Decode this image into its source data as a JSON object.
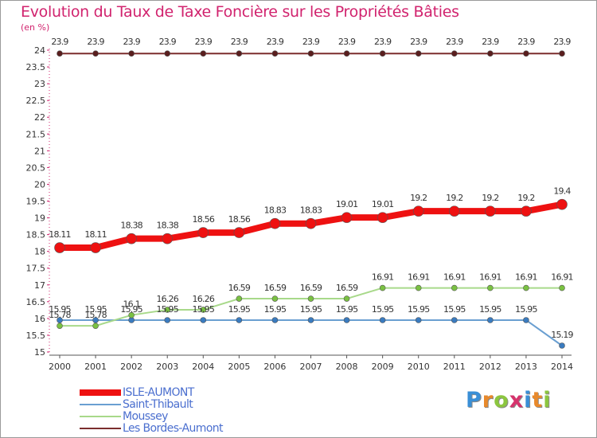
{
  "title": "Evolution du Taux de Taxe Foncière sur les Propriétés Bâties",
  "unit_label": "(en %)",
  "brand": {
    "name": "Proxiti",
    "letters": [
      {
        "ch": "P",
        "color": "#3a8fd6"
      },
      {
        "ch": "r",
        "color": "#e8892b"
      },
      {
        "ch": "o",
        "color": "#8cc63f"
      },
      {
        "ch": "x",
        "color": "#d6336c"
      },
      {
        "ch": "i",
        "color": "#3a8fd6"
      },
      {
        "ch": "t",
        "color": "#e8892b"
      },
      {
        "ch": "i",
        "color": "#8cc63f"
      }
    ]
  },
  "chart_data": {
    "type": "line",
    "title": "Evolution du Taux de Taxe Foncière sur les Propriétés Bâties",
    "ylabel": "(en %)",
    "xlabel": "",
    "ylim": [
      15,
      24
    ],
    "yticks": [
      "15",
      "15.5",
      "16",
      "16.5",
      "17",
      "17.5",
      "18",
      "18.5",
      "19",
      "19.5",
      "20",
      "20.5",
      "21",
      "21.5",
      "22",
      "22.5",
      "23",
      "23.5",
      "24"
    ],
    "categories": [
      "2000",
      "2001",
      "2002",
      "2003",
      "2004",
      "2005",
      "2006",
      "2007",
      "2008",
      "2009",
      "2010",
      "2011",
      "2012",
      "2013",
      "2014"
    ],
    "series": [
      {
        "name": "Les Bordes-Aumont",
        "color": "#7b2d2d",
        "dot": "#5a1e1e",
        "width": 2,
        "radius": 3.5,
        "values": [
          23.9,
          23.9,
          23.9,
          23.9,
          23.9,
          23.9,
          23.9,
          23.9,
          23.9,
          23.9,
          23.9,
          23.9,
          23.9,
          23.9,
          23.9
        ],
        "labels": [
          "23.9",
          "23.9",
          "23.9",
          "23.9",
          "23.9",
          "23.9",
          "23.9",
          "23.9",
          "23.9",
          "23.9",
          "23.9",
          "23.9",
          "23.9",
          "23.9",
          "23.9"
        ]
      },
      {
        "name": "Saint-Thibault",
        "color": "#6a9fd1",
        "dot": "#3a7bbf",
        "width": 2,
        "radius": 3.5,
        "values": [
          15.95,
          15.95,
          15.95,
          15.95,
          15.95,
          15.95,
          15.95,
          15.95,
          15.95,
          15.95,
          15.95,
          15.95,
          15.95,
          15.95,
          15.19
        ],
        "labels": [
          "15.95",
          "15.95",
          "15.95",
          "15.95",
          "15.95",
          "15.95",
          "15.95",
          "15.95",
          "15.95",
          "15.95",
          "15.95",
          "15.95",
          "15.95",
          "15.95",
          "15.19"
        ]
      },
      {
        "name": "Moussey",
        "color": "#a8d98a",
        "dot": "#7ac142",
        "width": 2,
        "radius": 3.5,
        "values": [
          15.78,
          15.78,
          16.1,
          16.26,
          16.26,
          16.59,
          16.59,
          16.59,
          16.59,
          16.91,
          16.91,
          16.91,
          16.91,
          16.91,
          16.91
        ],
        "labels": [
          "15.78",
          "15.78",
          "16.1",
          "16.26",
          "16.26",
          "16.59",
          "16.59",
          "16.59",
          "16.59",
          "16.91",
          "16.91",
          "16.91",
          "16.91",
          "16.91",
          "16.91"
        ]
      },
      {
        "name": "ISLE-AUMONT",
        "color": "#ee1111",
        "dot": "#ee1111",
        "width": 8,
        "radius": 6.5,
        "values": [
          18.11,
          18.11,
          18.38,
          18.38,
          18.56,
          18.56,
          18.83,
          18.83,
          19.01,
          19.01,
          19.2,
          19.2,
          19.2,
          19.2,
          19.4
        ],
        "labels": [
          "18.11",
          "18.11",
          "18.38",
          "18.38",
          "18.56",
          "18.56",
          "18.83",
          "18.83",
          "19.01",
          "19.01",
          "19.2",
          "19.2",
          "19.2",
          "19.2",
          "19.4"
        ]
      }
    ],
    "legend": [
      {
        "name": "ISLE-AUMONT",
        "color": "#ee1111",
        "thick": true
      },
      {
        "name": "Saint-Thibault",
        "color": "#6a9fd1",
        "thick": false
      },
      {
        "name": "Moussey",
        "color": "#a8d98a",
        "thick": false
      },
      {
        "name": "Les Bordes-Aumont",
        "color": "#7b2d2d",
        "thick": false
      }
    ],
    "legend_position": "bottom-left",
    "grid": false
  }
}
